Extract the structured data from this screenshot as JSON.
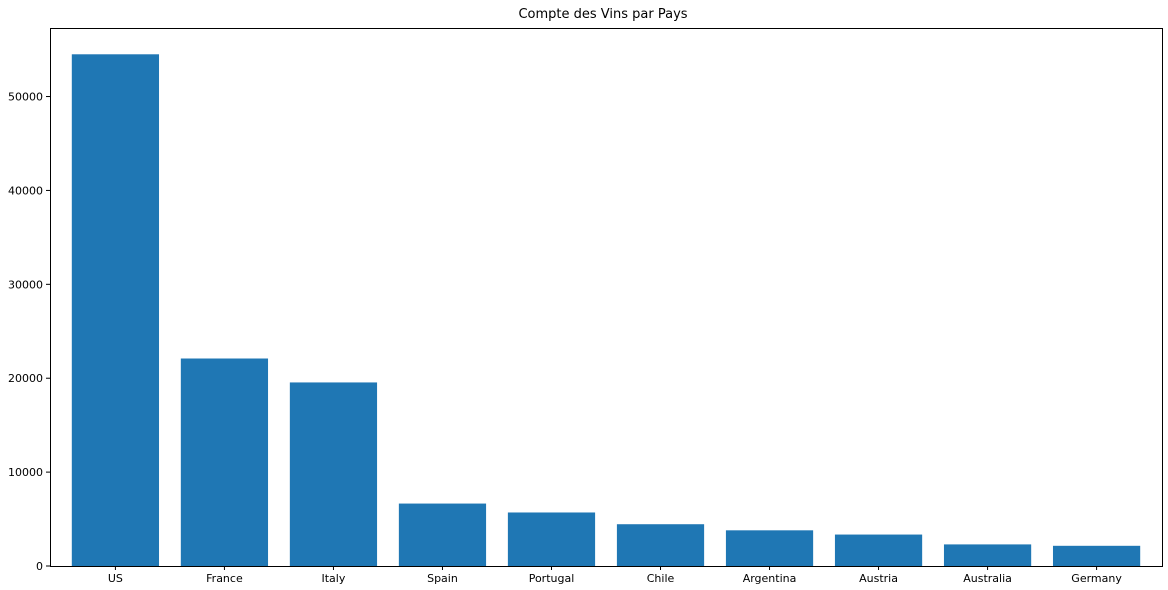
{
  "chart_data": {
    "type": "bar",
    "title": "Compte des Vins par Pays",
    "xlabel": "",
    "ylabel": "",
    "categories": [
      "US",
      "France",
      "Italy",
      "Spain",
      "Portugal",
      "Chile",
      "Argentina",
      "Austria",
      "Australia",
      "Germany"
    ],
    "values": [
      54500,
      22100,
      19550,
      6650,
      5700,
      4450,
      3800,
      3350,
      2300,
      2150
    ],
    "ylim": [
      0,
      57300
    ],
    "yticks": [
      0,
      10000,
      20000,
      30000,
      40000,
      50000
    ],
    "grid": false,
    "bar_color": "#1f77b4"
  }
}
